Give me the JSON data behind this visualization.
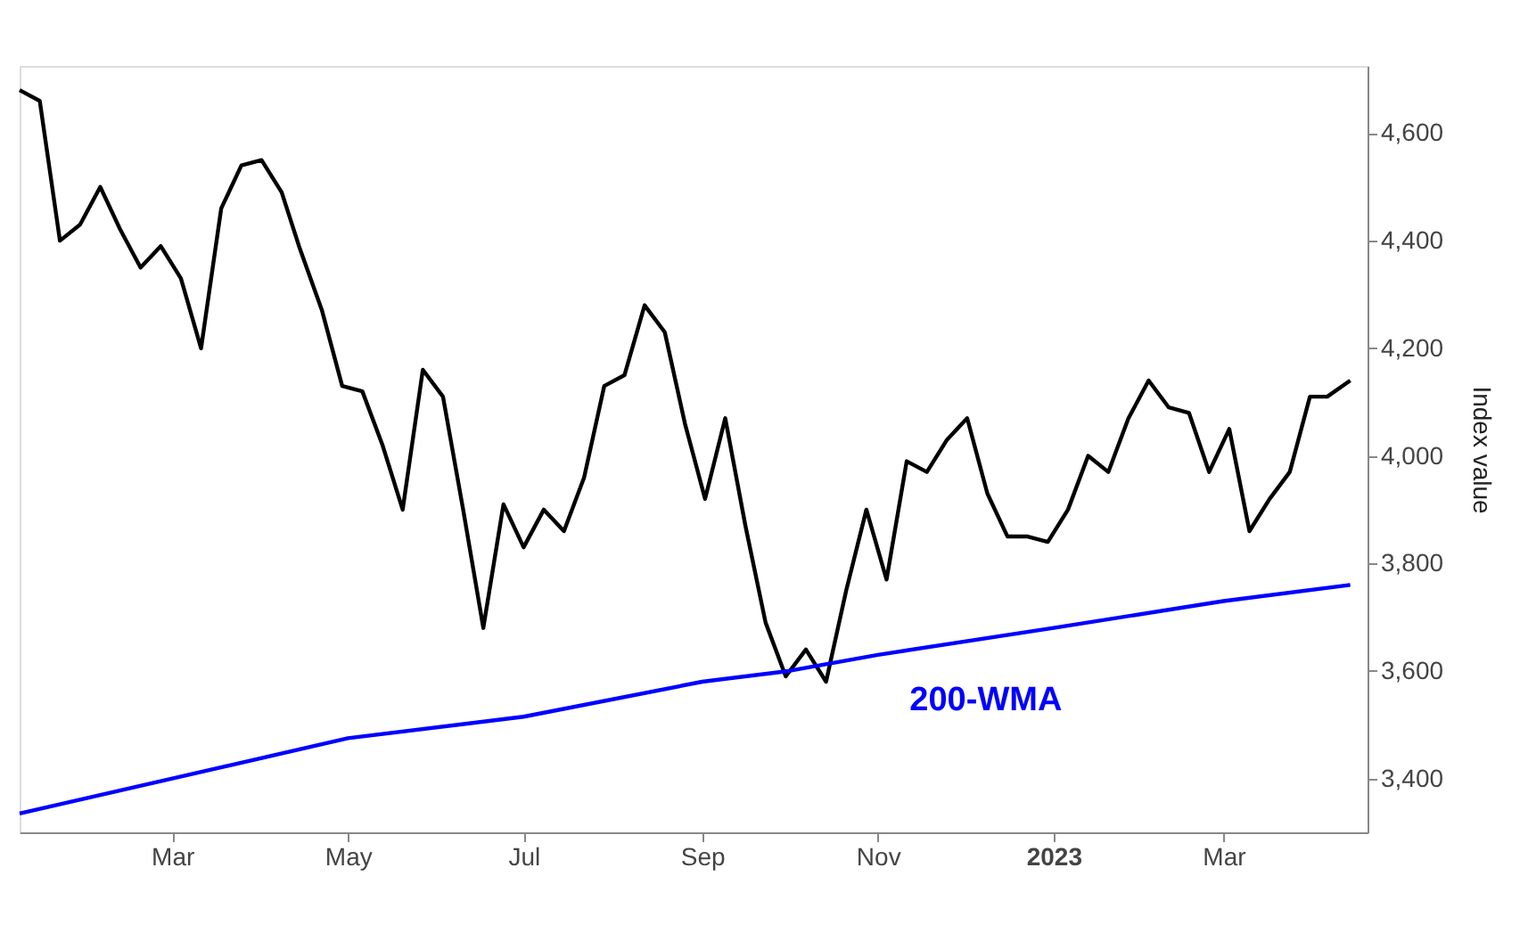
{
  "chart_data": {
    "type": "line",
    "ylabel": "Index value",
    "x": [
      "2022-01-07",
      "2022-01-14",
      "2022-01-21",
      "2022-01-28",
      "2022-02-04",
      "2022-02-11",
      "2022-02-18",
      "2022-02-25",
      "2022-03-04",
      "2022-03-11",
      "2022-03-18",
      "2022-03-25",
      "2022-04-01",
      "2022-04-08",
      "2022-04-14",
      "2022-04-22",
      "2022-04-29",
      "2022-05-06",
      "2022-05-13",
      "2022-05-20",
      "2022-05-27",
      "2022-06-03",
      "2022-06-10",
      "2022-06-17",
      "2022-06-24",
      "2022-07-01",
      "2022-07-08",
      "2022-07-15",
      "2022-07-22",
      "2022-07-29",
      "2022-08-05",
      "2022-08-12",
      "2022-08-19",
      "2022-08-26",
      "2022-09-02",
      "2022-09-09",
      "2022-09-16",
      "2022-09-23",
      "2022-09-30",
      "2022-10-07",
      "2022-10-14",
      "2022-10-21",
      "2022-10-28",
      "2022-11-04",
      "2022-11-11",
      "2022-11-18",
      "2022-11-25",
      "2022-12-02",
      "2022-12-09",
      "2022-12-16",
      "2022-12-23",
      "2022-12-30",
      "2023-01-06",
      "2023-01-13",
      "2023-01-20",
      "2023-01-27",
      "2023-02-03",
      "2023-02-10",
      "2023-02-17",
      "2023-02-24",
      "2023-03-03",
      "2023-03-10",
      "2023-03-17",
      "2023-03-24",
      "2023-03-31",
      "2023-04-06",
      "2023-04-14"
    ],
    "series": [
      {
        "color": "#000000",
        "values": [
          4680,
          4660,
          4400,
          4430,
          4500,
          4420,
          4350,
          4390,
          4330,
          4200,
          4460,
          4540,
          4550,
          4490,
          4390,
          4270,
          4130,
          4120,
          4020,
          3900,
          4160,
          4110,
          3900,
          3680,
          3910,
          3830,
          3900,
          3860,
          3960,
          4130,
          4150,
          4280,
          4230,
          4060,
          3920,
          4070,
          3870,
          3690,
          3590,
          3640,
          3580,
          3750,
          3900,
          3770,
          3990,
          3970,
          4030,
          4070,
          3930,
          3850,
          3850,
          3840,
          3900,
          4000,
          3970,
          4070,
          4140,
          4090,
          4080,
          3970,
          4050,
          3860,
          3920,
          3970,
          4110,
          4110,
          4140
        ]
      },
      {
        "name": "200-WMA",
        "color": "#0000ff",
        "x": [
          "2022-01-07",
          "2022-03-01",
          "2022-05-01",
          "2022-07-01",
          "2022-09-01",
          "2022-10-01",
          "2022-11-01",
          "2023-01-01",
          "2023-03-01",
          "2023-04-14"
        ],
        "values": [
          3335,
          3400,
          3475,
          3515,
          3580,
          3600,
          3630,
          3680,
          3730,
          3760
        ]
      }
    ],
    "xlim": [
      "2022-01-07",
      "2023-04-20"
    ],
    "xticks": [
      {
        "value": "2022-03-01",
        "label": "Mar"
      },
      {
        "value": "2022-05-01",
        "label": "May"
      },
      {
        "value": "2022-07-01",
        "label": "Jul"
      },
      {
        "value": "2022-09-01",
        "label": "Sep"
      },
      {
        "value": "2022-11-01",
        "label": "Nov"
      },
      {
        "value": "2023-01-01",
        "label": "2023"
      },
      {
        "value": "2023-03-01",
        "label": "Mar"
      }
    ],
    "ylim": [
      3300,
      4725
    ],
    "yticks": [
      {
        "value": 3400,
        "label": "3,400"
      },
      {
        "value": 3600,
        "label": "3,600"
      },
      {
        "value": 3800,
        "label": "3,800"
      },
      {
        "value": 4000,
        "label": "4,000"
      },
      {
        "value": 4200,
        "label": "4,200"
      },
      {
        "value": 4400,
        "label": "4,400"
      },
      {
        "value": 4600,
        "label": "4,600"
      }
    ],
    "grid": false,
    "marker": "none",
    "line_style": "solid"
  }
}
